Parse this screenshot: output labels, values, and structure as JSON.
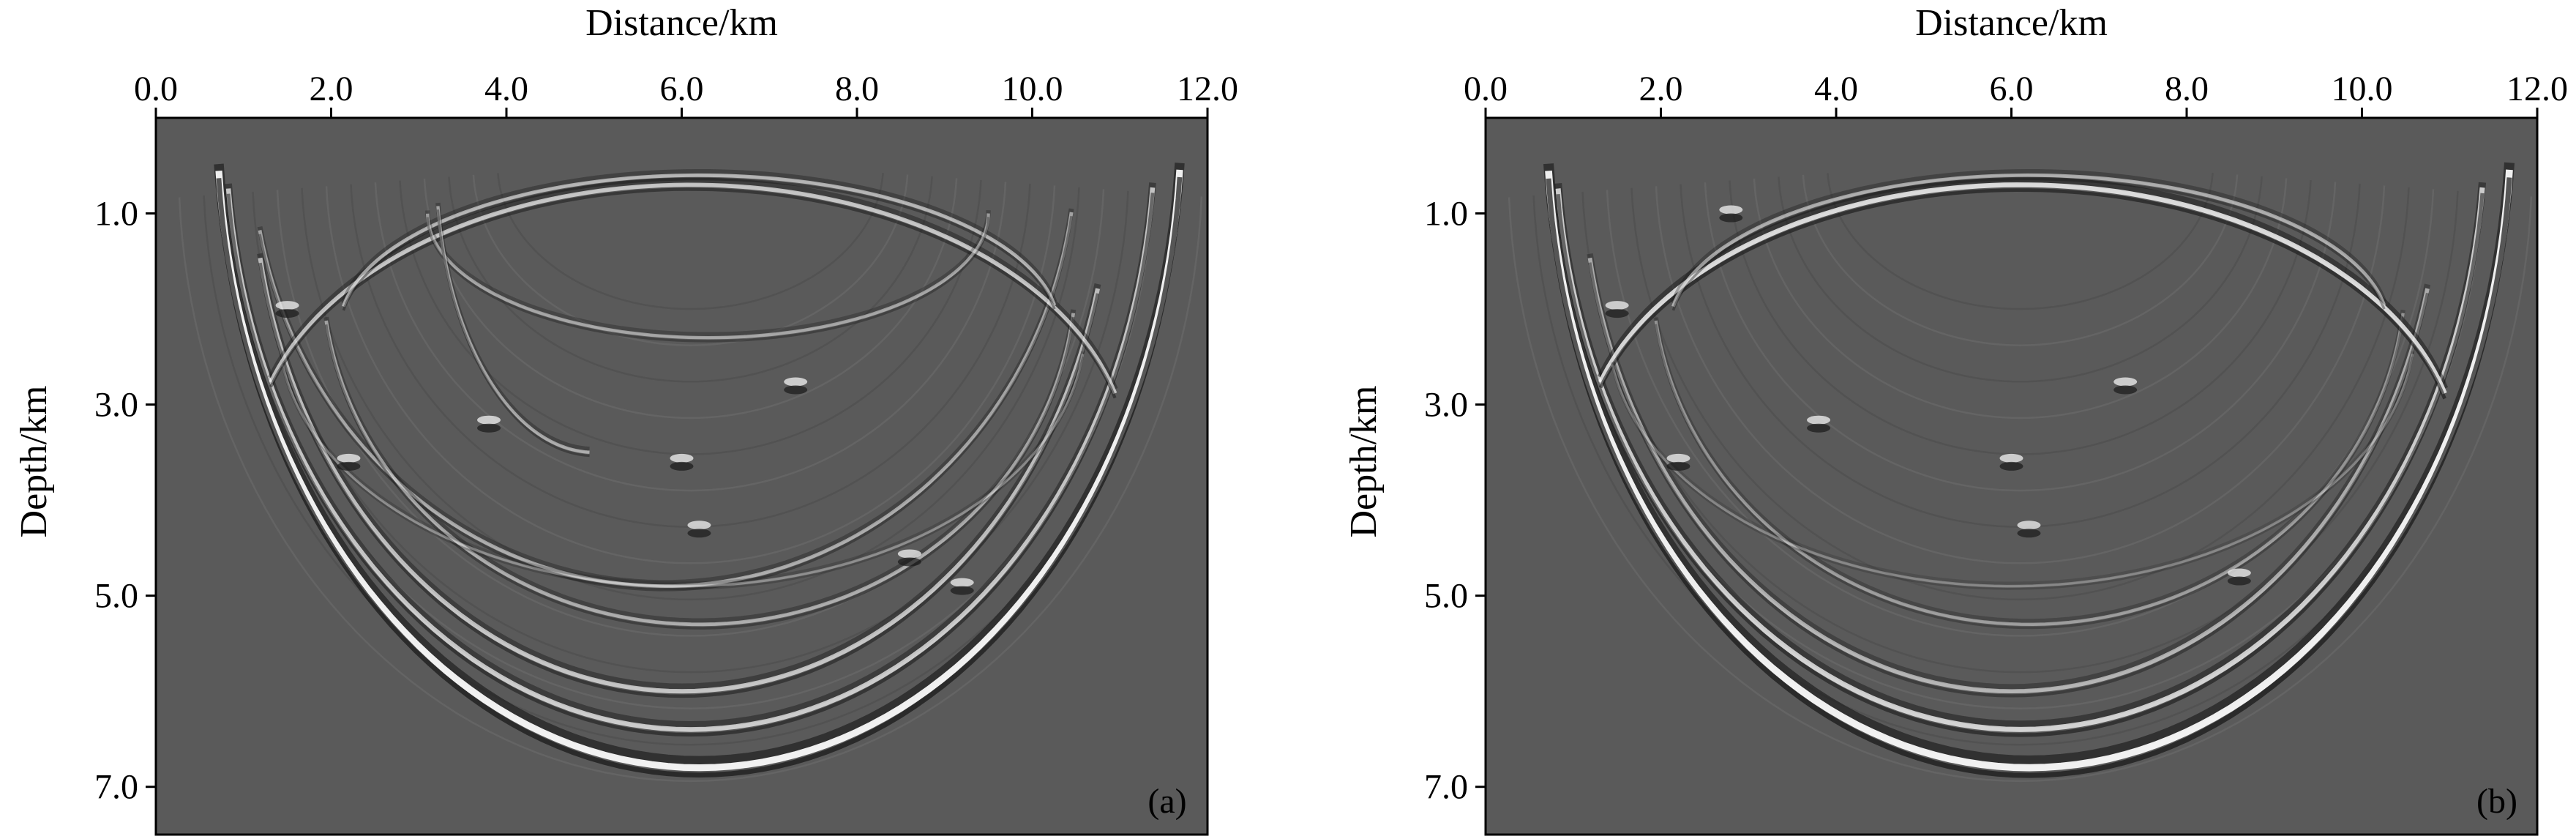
{
  "chart_data": [
    {
      "type": "heatmap",
      "xlabel": "Distance/km",
      "ylabel": "Depth/km",
      "panel_label": "(a)",
      "xlim": [
        0,
        12
      ],
      "ylim": [
        7.5,
        0
      ],
      "x_ticks": [
        0.0,
        2.0,
        4.0,
        6.0,
        8.0,
        10.0,
        12.0
      ],
      "x_tick_labels": [
        "0.0",
        "2.0",
        "4.0",
        "6.0",
        "8.0",
        "10.0",
        "12.0"
      ],
      "y_ticks": [
        1.0,
        3.0,
        5.0,
        7.0
      ],
      "y_tick_labels": [
        "1.0",
        "3.0",
        "5.0",
        "7.0"
      ],
      "x_axis_position": "top",
      "colormap": "grayscale",
      "background_color": "#5a5a5a",
      "events": [
        {
          "kind": "bowl",
          "cx": 6.2,
          "cy": 0.0,
          "rx": 5.5,
          "ry": 6.8,
          "a0": 0.08,
          "a1": 3.06,
          "width": 4.2,
          "strength": 1.0
        },
        {
          "kind": "bowl",
          "cx": 6.1,
          "cy": 0.1,
          "rx": 5.3,
          "ry": 6.3,
          "a0": 0.1,
          "a1": 3.04,
          "width": 3.0,
          "strength": 0.75
        },
        {
          "kind": "bowl",
          "cx": 6.0,
          "cy": 0.4,
          "rx": 4.9,
          "ry": 5.6,
          "a0": 0.25,
          "a1": 2.95,
          "width": 2.8,
          "strength": 0.7
        },
        {
          "kind": "bowl",
          "cx": 5.8,
          "cy": 0.3,
          "rx": 4.7,
          "ry": 4.6,
          "a0": 0.15,
          "a1": 2.95,
          "width": 2.2,
          "strength": 0.55
        },
        {
          "kind": "bowl",
          "cx": 6.2,
          "cy": 1.6,
          "rx": 4.3,
          "ry": 3.7,
          "a0": 0.12,
          "a1": 3.0,
          "width": 2.2,
          "strength": 0.55
        },
        {
          "kind": "bowl",
          "cx": 6.0,
          "cy": 2.2,
          "rx": 4.6,
          "ry": 2.7,
          "a0": 0.1,
          "a1": 3.0,
          "width": 1.6,
          "strength": 0.35
        },
        {
          "kind": "dome",
          "cx": 6.1,
          "cy": 3.6,
          "rx": 5.0,
          "ry": 2.9,
          "a0": 0.25,
          "a1": 2.85,
          "width": 2.6,
          "strength": 0.7
        },
        {
          "kind": "dome",
          "cx": 6.2,
          "cy": 2.2,
          "rx": 4.1,
          "ry": 1.6,
          "a0": 0.15,
          "a1": 3.0,
          "width": 2.2,
          "strength": 0.6
        },
        {
          "kind": "bowl",
          "cx": 6.3,
          "cy": 1.0,
          "rx": 3.2,
          "ry": 1.3,
          "a0": 0.0,
          "a1": 3.14,
          "width": 2.0,
          "strength": 0.5
        },
        {
          "kind": "bowl",
          "cx": 5.0,
          "cy": 0.5,
          "rx": 1.8,
          "ry": 3.0,
          "a0": 1.6,
          "a1": 3.0,
          "width": 2.0,
          "strength": 0.55
        }
      ],
      "diffractors": [
        {
          "x": 2.2,
          "y": 3.6
        },
        {
          "x": 6.2,
          "y": 4.3
        },
        {
          "x": 7.3,
          "y": 2.8
        },
        {
          "x": 1.5,
          "y": 2.0
        },
        {
          "x": 8.6,
          "y": 4.6
        },
        {
          "x": 9.2,
          "y": 4.9
        },
        {
          "x": 3.8,
          "y": 3.2
        },
        {
          "x": 6.0,
          "y": 3.6
        }
      ]
    },
    {
      "type": "heatmap",
      "xlabel": "Distance/km",
      "ylabel": "Depth/km",
      "panel_label": "(b)",
      "xlim": [
        0,
        12
      ],
      "ylim": [
        7.5,
        0
      ],
      "x_ticks": [
        0.0,
        2.0,
        4.0,
        6.0,
        8.0,
        10.0,
        12.0
      ],
      "x_tick_labels": [
        "0.0",
        "2.0",
        "4.0",
        "6.0",
        "8.0",
        "10.0",
        "12.0"
      ],
      "y_ticks": [
        1.0,
        3.0,
        5.0,
        7.0
      ],
      "y_tick_labels": [
        "1.0",
        "3.0",
        "5.0",
        "7.0"
      ],
      "x_axis_position": "top",
      "colormap": "grayscale",
      "background_color": "#5a5a5a",
      "events": [
        {
          "kind": "bowl",
          "cx": 6.2,
          "cy": 0.0,
          "rx": 5.5,
          "ry": 6.8,
          "a0": 0.08,
          "a1": 3.06,
          "width": 4.4,
          "strength": 1.0
        },
        {
          "kind": "bowl",
          "cx": 6.1,
          "cy": 0.1,
          "rx": 5.3,
          "ry": 6.3,
          "a0": 0.1,
          "a1": 3.04,
          "width": 3.2,
          "strength": 0.8
        },
        {
          "kind": "bowl",
          "cx": 6.0,
          "cy": 0.4,
          "rx": 4.9,
          "ry": 5.6,
          "a0": 0.25,
          "a1": 2.95,
          "width": 2.6,
          "strength": 0.6
        },
        {
          "kind": "bowl",
          "cx": 6.2,
          "cy": 1.6,
          "rx": 4.3,
          "ry": 3.7,
          "a0": 0.12,
          "a1": 3.0,
          "width": 2.0,
          "strength": 0.45
        },
        {
          "kind": "dome",
          "cx": 6.1,
          "cy": 3.6,
          "rx": 5.0,
          "ry": 2.9,
          "a0": 0.25,
          "a1": 2.85,
          "width": 3.0,
          "strength": 0.85
        },
        {
          "kind": "dome",
          "cx": 6.2,
          "cy": 2.2,
          "rx": 4.1,
          "ry": 1.6,
          "a0": 0.15,
          "a1": 3.0,
          "width": 2.2,
          "strength": 0.55
        },
        {
          "kind": "bowl",
          "cx": 6.0,
          "cy": 2.2,
          "rx": 4.6,
          "ry": 2.7,
          "a0": 0.1,
          "a1": 3.0,
          "width": 1.6,
          "strength": 0.3
        }
      ],
      "diffractors": [
        {
          "x": 2.2,
          "y": 3.6
        },
        {
          "x": 6.2,
          "y": 4.3
        },
        {
          "x": 7.3,
          "y": 2.8
        },
        {
          "x": 1.5,
          "y": 2.0
        },
        {
          "x": 8.6,
          "y": 4.8
        },
        {
          "x": 3.8,
          "y": 3.2
        },
        {
          "x": 6.0,
          "y": 3.6
        },
        {
          "x": 2.8,
          "y": 1.0
        }
      ]
    }
  ]
}
